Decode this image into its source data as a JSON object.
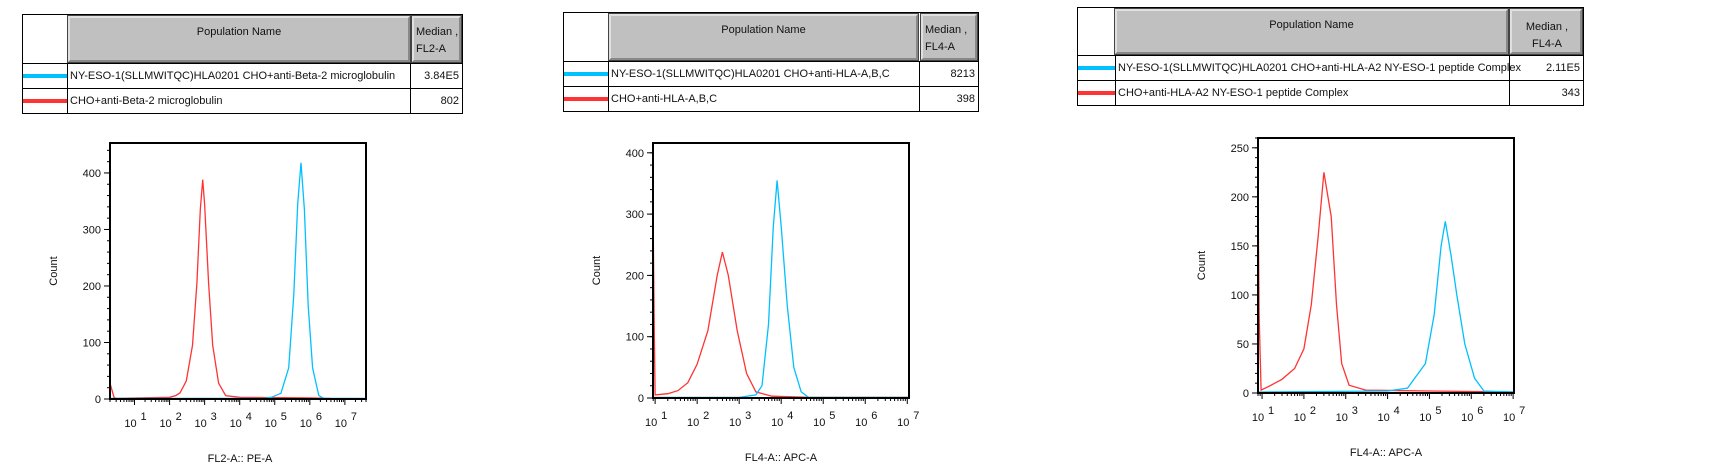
{
  "colors": {
    "red": "#ff3333",
    "cyan": "#00c0ff"
  },
  "tables": [
    {
      "header": {
        "name": "Population Name",
        "median_line1": "Median ,",
        "median_line2": "FL2-A"
      },
      "rows": [
        {
          "color": "#00c0ff",
          "name": "NY-ESO-1(SLLMWITQC)HLA0201 CHO+anti-Beta-2 microglobulin",
          "median": "3.84E5"
        },
        {
          "color": "#ff3333",
          "name": "CHO+anti-Beta-2 microglobulin",
          "median": "802"
        }
      ]
    },
    {
      "header": {
        "name": "Population Name",
        "median_line1": "Median ,",
        "median_line2": "FL4-A"
      },
      "rows": [
        {
          "color": "#00c0ff",
          "name": "NY-ESO-1(SLLMWITQC)HLA0201 CHO+anti-HLA-A,B,C",
          "median": "8213"
        },
        {
          "color": "#ff3333",
          "name": "CHO+anti-HLA-A,B,C",
          "median": "398"
        }
      ]
    },
    {
      "header": {
        "name": "Population Name",
        "median_line1": "Median , FL4-A",
        "median_line2": ""
      },
      "rows": [
        {
          "color": "#00c0ff",
          "name": "NY-ESO-1(SLLMWITQC)HLA0201 CHO+anti-HLA-A2 NY-ESO-1 peptide Complex",
          "median": "2.11E5"
        },
        {
          "color": "#ff3333",
          "name": "CHO+anti-HLA-A2 NY-ESO-1 peptide Complex",
          "median": "343"
        }
      ]
    }
  ],
  "chart_data": [
    {
      "type": "line",
      "xlabel": "FL2-A:: PE-A",
      "ylabel": "Count",
      "x_scale": "log",
      "xlim": [
        2,
        40000000
      ],
      "ylim": [
        0,
        453
      ],
      "x_ticks": [
        {
          "base": "10",
          "exp": "1"
        },
        {
          "base": "10",
          "exp": "2"
        },
        {
          "base": "10",
          "exp": "3"
        },
        {
          "base": "10",
          "exp": "4"
        },
        {
          "base": "10",
          "exp": "5"
        },
        {
          "base": "10",
          "exp": "6"
        },
        {
          "base": "10",
          "exp": "7"
        }
      ],
      "y_ticks": [
        0,
        100,
        200,
        300,
        400
      ],
      "grid": false,
      "series": [
        {
          "color": "#ff3333",
          "points": [
            [
              2,
              28
            ],
            [
              2.6,
              3
            ],
            [
              3,
              1
            ],
            [
              100,
              3
            ],
            [
              150,
              6
            ],
            [
              200,
              11
            ],
            [
              300,
              32
            ],
            [
              450,
              95
            ],
            [
              600,
              205
            ],
            [
              750,
              335
            ],
            [
              880,
              388
            ],
            [
              1000,
              345
            ],
            [
              1300,
              205
            ],
            [
              1700,
              95
            ],
            [
              2500,
              28
            ],
            [
              4000,
              6
            ],
            [
              10000,
              3
            ],
            [
              1000000,
              2
            ],
            [
              4000000,
              1
            ]
          ]
        },
        {
          "color": "#00c0ff",
          "points": [
            [
              2,
              1
            ],
            [
              50000,
              1
            ],
            [
              80000,
              3
            ],
            [
              150000,
              10
            ],
            [
              250000,
              55
            ],
            [
              350000,
              185
            ],
            [
              450000,
              345
            ],
            [
              560000,
              418
            ],
            [
              700000,
              335
            ],
            [
              900000,
              165
            ],
            [
              1200000,
              55
            ],
            [
              1800000,
              6
            ],
            [
              2500000,
              1
            ],
            [
              40000000,
              1
            ]
          ]
        }
      ]
    },
    {
      "type": "line",
      "xlabel": "FL4-A:: APC-A",
      "ylabel": "Count",
      "x_scale": "log",
      "xlim": [
        8.9,
        11000000
      ],
      "ylim": [
        0,
        416
      ],
      "x_ticks": [
        {
          "base": "10",
          "exp": "1"
        },
        {
          "base": "10",
          "exp": "2"
        },
        {
          "base": "10",
          "exp": "3"
        },
        {
          "base": "10",
          "exp": "4"
        },
        {
          "base": "10",
          "exp": "5"
        },
        {
          "base": "10",
          "exp": "6"
        },
        {
          "base": "10",
          "exp": "7"
        }
      ],
      "y_ticks": [
        0,
        100,
        200,
        300,
        400
      ],
      "grid": false,
      "series": [
        {
          "color": "#ff3333",
          "points": [
            [
              9,
              280
            ],
            [
              9.5,
              120
            ],
            [
              10,
              5
            ],
            [
              20,
              7
            ],
            [
              35,
              12
            ],
            [
              60,
              25
            ],
            [
              100,
              55
            ],
            [
              180,
              110
            ],
            [
              300,
              200
            ],
            [
              400,
              238
            ],
            [
              550,
              200
            ],
            [
              900,
              110
            ],
            [
              1500,
              40
            ],
            [
              2500,
              10
            ],
            [
              6000,
              3
            ],
            [
              50000,
              1
            ],
            [
              11000000,
              1
            ]
          ]
        },
        {
          "color": "#00c0ff",
          "points": [
            [
              9,
              1
            ],
            [
              1000,
              1
            ],
            [
              2500,
              5
            ],
            [
              3500,
              20
            ],
            [
              5000,
              120
            ],
            [
              6500,
              280
            ],
            [
              8000,
              355
            ],
            [
              10000,
              280
            ],
            [
              14000,
              150
            ],
            [
              20000,
              50
            ],
            [
              30000,
              10
            ],
            [
              45000,
              1
            ],
            [
              11000000,
              1
            ]
          ]
        }
      ]
    },
    {
      "type": "line",
      "xlabel": "FL4-A:: APC-A",
      "ylabel": "Count",
      "x_scale": "log",
      "xlim": [
        8,
        10500000
      ],
      "ylim": [
        0,
        260
      ],
      "x_ticks": [
        {
          "base": "10",
          "exp": "1"
        },
        {
          "base": "10",
          "exp": "2"
        },
        {
          "base": "10",
          "exp": "3"
        },
        {
          "base": "10",
          "exp": "4"
        },
        {
          "base": "10",
          "exp": "5"
        },
        {
          "base": "10",
          "exp": "6"
        },
        {
          "base": "10",
          "exp": "7"
        }
      ],
      "y_ticks": [
        0,
        50,
        100,
        150,
        200,
        250
      ],
      "grid": false,
      "series": [
        {
          "color": "#ff3333",
          "points": [
            [
              8,
              210
            ],
            [
              8.5,
              80
            ],
            [
              9.5,
              3
            ],
            [
              15,
              7
            ],
            [
              30,
              14
            ],
            [
              60,
              25
            ],
            [
              100,
              45
            ],
            [
              150,
              90
            ],
            [
              220,
              160
            ],
            [
              300,
              225
            ],
            [
              450,
              180
            ],
            [
              600,
              90
            ],
            [
              800,
              30
            ],
            [
              1200,
              8
            ],
            [
              3000,
              3
            ],
            [
              100000,
              2
            ],
            [
              10500000,
              1
            ]
          ]
        },
        {
          "color": "#00c0ff",
          "points": [
            [
              8,
              1
            ],
            [
              10000,
              2
            ],
            [
              30000,
              5
            ],
            [
              80000,
              30
            ],
            [
              130000,
              80
            ],
            [
              190000,
              150
            ],
            [
              240000,
              175
            ],
            [
              330000,
              140
            ],
            [
              450000,
              100
            ],
            [
              700000,
              50
            ],
            [
              1200000,
              15
            ],
            [
              2000000,
              2
            ],
            [
              10500000,
              1
            ]
          ]
        }
      ]
    }
  ]
}
